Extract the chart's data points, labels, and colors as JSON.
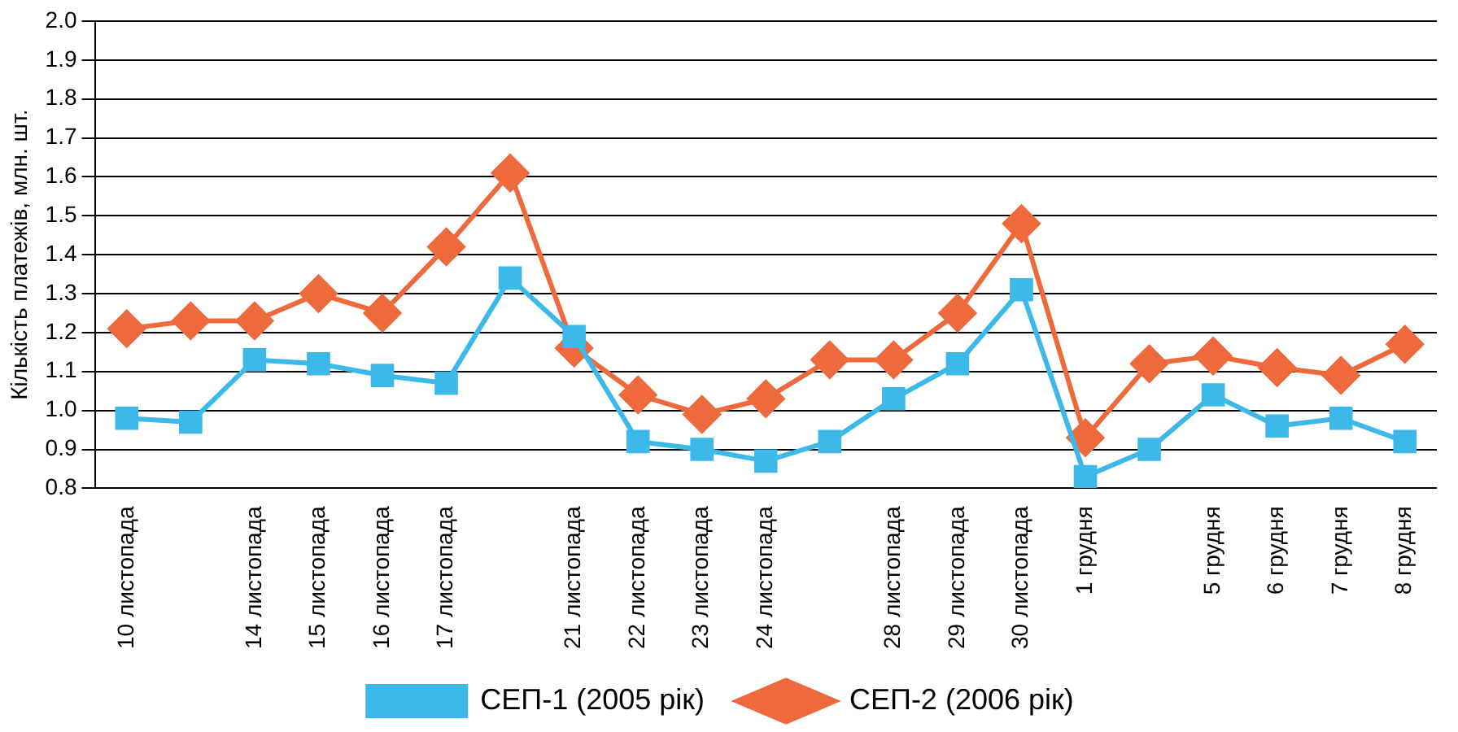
{
  "chart_data": {
    "type": "line",
    "ylabel": "Кількість платежів, млн. шт.",
    "categories": [
      "10 листопада",
      null,
      "14 листопада",
      "15 листопада",
      "16 листопада",
      "17 листопада",
      null,
      "21 листопада",
      "22 листопада",
      "23 листопада",
      "24 листопада",
      null,
      "28 листопада",
      "29 листопада",
      "30 листопада",
      "1 грудня",
      null,
      "5 грудня",
      "6 грудня",
      "7 грудня",
      "8 грудня"
    ],
    "series": [
      {
        "name": "СЕП-1 (2005 рік)",
        "color": "#3cb9e8",
        "marker": "square",
        "values": [
          0.98,
          0.97,
          1.13,
          1.12,
          1.09,
          1.07,
          1.34,
          1.19,
          0.92,
          0.9,
          0.87,
          0.92,
          1.03,
          1.12,
          1.31,
          0.83,
          0.9,
          1.04,
          0.96,
          0.98,
          0.92
        ]
      },
      {
        "name": "СЕП-2 (2006 рік)",
        "color": "#ee6a3c",
        "marker": "diamond",
        "values": [
          1.21,
          1.23,
          1.23,
          1.3,
          1.25,
          1.42,
          1.61,
          1.16,
          1.04,
          0.99,
          1.03,
          1.13,
          1.13,
          1.25,
          1.48,
          0.93,
          1.12,
          1.14,
          1.11,
          1.09,
          1.17
        ]
      }
    ],
    "ylim": [
      0.8,
      2.0
    ],
    "yticks": [
      {
        "value": 0.8,
        "label": "0.8"
      },
      {
        "value": 0.9,
        "label": "0.9"
      },
      {
        "value": 1.0,
        "label": "1.0"
      },
      {
        "value": 1.1,
        "label": "1.1"
      },
      {
        "value": 1.2,
        "label": "1.2"
      },
      {
        "value": 1.3,
        "label": "1.3"
      },
      {
        "value": 1.4,
        "label": "1.4"
      },
      {
        "value": 1.5,
        "label": "1.5"
      },
      {
        "value": 1.6,
        "label": "1.6"
      },
      {
        "value": 1.7,
        "label": "1.7"
      },
      {
        "value": 1.8,
        "label": "1.8"
      },
      {
        "value": 1.9,
        "label": "1.9"
      },
      {
        "value": 2.0,
        "label": "2.0"
      }
    ],
    "grid": "y",
    "legend": "bottom",
    "line_style": "solid"
  }
}
